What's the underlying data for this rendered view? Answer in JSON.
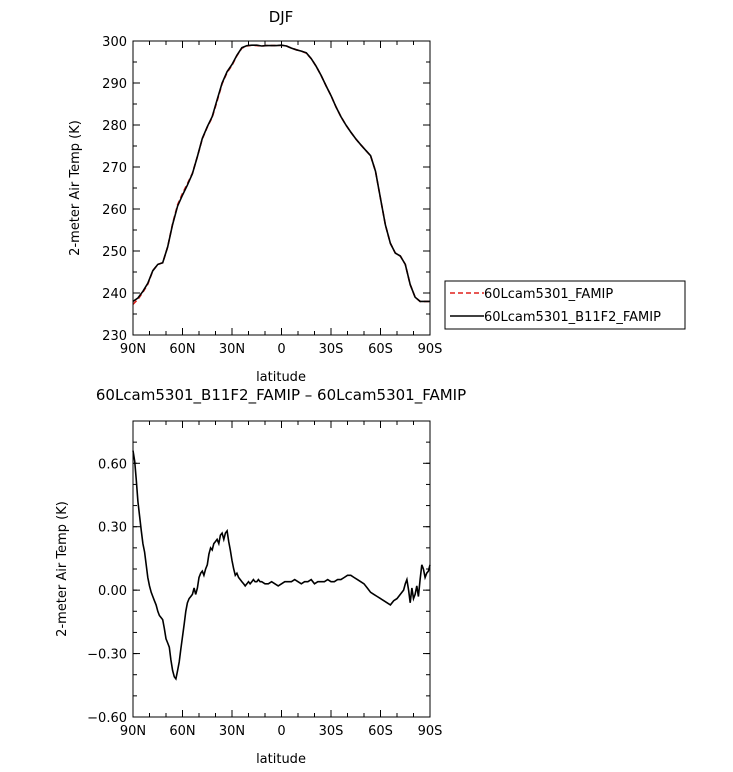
{
  "chart_data": [
    {
      "type": "line",
      "title": "DJF",
      "xlabel": "latitude",
      "ylabel": "2-meter Air Temp (K)",
      "xticks": [
        "90N",
        "60N",
        "30N",
        "0",
        "30S",
        "60S",
        "90S"
      ],
      "yticks": [
        "230",
        "240",
        "250",
        "260",
        "270",
        "280",
        "290",
        "300"
      ],
      "xlim": [
        90,
        -90
      ],
      "ylim": [
        230,
        300
      ],
      "grid": false,
      "legend_position": "right",
      "series": [
        {
          "name": "60Lcam5301_FAMIP",
          "color": "#e0201b",
          "style": "dashed",
          "x": [
            90,
            87,
            84,
            81,
            78,
            75,
            72,
            69,
            66,
            63,
            60,
            57,
            54,
            51,
            48,
            45,
            42,
            39,
            36,
            33,
            30,
            27,
            24,
            21,
            18,
            15,
            12,
            9,
            6,
            3,
            0,
            -3,
            -6,
            -9,
            -12,
            -15,
            -18,
            -21,
            -24,
            -27,
            -30,
            -33,
            -36,
            -39,
            -42,
            -45,
            -48,
            -51,
            -54,
            -57,
            -60,
            -63,
            -66,
            -69,
            -72,
            -75,
            -78,
            -81,
            -84,
            -87,
            -90
          ],
          "y": [
            237.3,
            238.5,
            240.2,
            242.1,
            245.3,
            246.8,
            247.2,
            251.0,
            256.5,
            261.0,
            263.7,
            266.0,
            268.5,
            272.5,
            276.7,
            279.5,
            281.8,
            285.7,
            289.8,
            292.5,
            294.2,
            296.5,
            298.3,
            298.8,
            299.0,
            298.9,
            298.8,
            298.9,
            298.9,
            298.9,
            299.0,
            298.8,
            298.3,
            297.9,
            297.6,
            297.1,
            295.8,
            294.0,
            291.8,
            289.3,
            287.0,
            284.3,
            282.0,
            280.0,
            278.3,
            276.7,
            275.3,
            274.0,
            272.7,
            269.0,
            262.5,
            256.2,
            251.8,
            249.5,
            248.8,
            246.8,
            242.0,
            239.0,
            238.0,
            238.0,
            238.0
          ]
        },
        {
          "name": "60Lcam5301_B11F2_FAMIP",
          "color": "#000000",
          "style": "solid",
          "x": [
            90,
            87,
            84,
            81,
            78,
            75,
            72,
            69,
            66,
            63,
            60,
            57,
            54,
            51,
            48,
            45,
            42,
            39,
            36,
            33,
            30,
            27,
            24,
            21,
            18,
            15,
            12,
            9,
            6,
            3,
            0,
            -3,
            -6,
            -9,
            -12,
            -15,
            -18,
            -21,
            -24,
            -27,
            -30,
            -33,
            -36,
            -39,
            -42,
            -45,
            -48,
            -51,
            -54,
            -57,
            -60,
            -63,
            -66,
            -69,
            -72,
            -75,
            -78,
            -81,
            -84,
            -87,
            -90
          ],
          "y": [
            238.0,
            238.8,
            240.4,
            242.3,
            245.3,
            246.8,
            247.2,
            251.0,
            256.3,
            260.7,
            263.3,
            265.7,
            268.4,
            272.5,
            276.8,
            279.6,
            282.0,
            286.0,
            290.0,
            292.7,
            294.4,
            296.6,
            298.4,
            298.9,
            299.0,
            299.0,
            298.8,
            298.9,
            298.9,
            298.9,
            299.0,
            298.8,
            298.3,
            297.9,
            297.6,
            297.2,
            295.8,
            294.0,
            291.8,
            289.3,
            287.0,
            284.3,
            282.0,
            280.0,
            278.3,
            276.7,
            275.3,
            274.0,
            272.7,
            269.0,
            262.5,
            256.2,
            251.8,
            249.5,
            248.8,
            246.8,
            242.0,
            239.0,
            238.0,
            238.0,
            238.0
          ]
        }
      ]
    },
    {
      "type": "line",
      "title": "60Lcam5301_B11F2_FAMIP – 60Lcam5301_FAMIP",
      "xlabel": "latitude",
      "ylabel": "2-meter Air Temp (K)",
      "xticks": [
        "90N",
        "60N",
        "30N",
        "0",
        "30S",
        "60S",
        "90S"
      ],
      "yticks": [
        "−0.60",
        "−0.30",
        "0.00",
        "0.30",
        "0.60"
      ],
      "xlim": [
        90,
        -90
      ],
      "ylim": [
        -0.6,
        0.8
      ],
      "grid": false,
      "series": [
        {
          "color": "#000000",
          "style": "solid",
          "x": [
            90,
            89,
            88,
            87,
            86,
            85,
            84,
            83,
            82,
            81,
            80,
            79,
            78,
            77,
            76,
            75,
            74,
            73,
            72,
            71,
            70,
            69,
            68,
            67,
            66,
            65,
            64,
            63,
            62,
            61,
            60,
            59,
            58,
            57,
            56,
            55,
            54,
            53,
            52,
            51,
            50,
            49,
            48,
            47,
            46,
            45,
            44,
            43,
            42,
            41,
            40,
            39,
            38,
            37,
            36,
            35,
            34,
            33,
            32,
            31,
            30,
            29,
            28,
            27,
            26,
            25,
            24,
            23,
            22,
            21,
            20,
            19,
            18,
            17,
            16,
            15,
            14,
            13,
            12,
            10,
            8,
            6,
            4,
            2,
            0,
            -2,
            -4,
            -6,
            -8,
            -10,
            -12,
            -14,
            -16,
            -18,
            -20,
            -22,
            -24,
            -26,
            -28,
            -30,
            -32,
            -34,
            -36,
            -38,
            -40,
            -42,
            -44,
            -46,
            -48,
            -50,
            -52,
            -54,
            -56,
            -58,
            -60,
            -62,
            -64,
            -66,
            -68,
            -70,
            -72,
            -74,
            -75,
            -76,
            -77,
            -78,
            -79,
            -80,
            -81,
            -82,
            -83,
            -84,
            -85,
            -86,
            -87,
            -88,
            -89,
            -90
          ],
          "y": [
            0.66,
            0.61,
            0.52,
            0.42,
            0.35,
            0.28,
            0.22,
            0.18,
            0.12,
            0.06,
            0.02,
            -0.01,
            -0.03,
            -0.05,
            -0.07,
            -0.1,
            -0.12,
            -0.13,
            -0.14,
            -0.18,
            -0.23,
            -0.25,
            -0.27,
            -0.33,
            -0.38,
            -0.41,
            -0.42,
            -0.38,
            -0.34,
            -0.28,
            -0.22,
            -0.16,
            -0.1,
            -0.06,
            -0.04,
            -0.03,
            -0.02,
            0.01,
            -0.02,
            0.01,
            0.06,
            0.08,
            0.09,
            0.07,
            0.1,
            0.12,
            0.17,
            0.2,
            0.19,
            0.22,
            0.23,
            0.24,
            0.22,
            0.26,
            0.27,
            0.24,
            0.27,
            0.28,
            0.23,
            0.19,
            0.14,
            0.1,
            0.07,
            0.08,
            0.06,
            0.05,
            0.04,
            0.03,
            0.02,
            0.03,
            0.04,
            0.03,
            0.04,
            0.05,
            0.04,
            0.04,
            0.05,
            0.04,
            0.04,
            0.03,
            0.03,
            0.04,
            0.03,
            0.02,
            0.03,
            0.04,
            0.04,
            0.04,
            0.05,
            0.04,
            0.03,
            0.04,
            0.04,
            0.05,
            0.03,
            0.04,
            0.04,
            0.04,
            0.05,
            0.04,
            0.04,
            0.05,
            0.05,
            0.06,
            0.07,
            0.07,
            0.06,
            0.05,
            0.04,
            0.03,
            0.01,
            -0.01,
            -0.02,
            -0.03,
            -0.04,
            -0.05,
            -0.06,
            -0.07,
            -0.05,
            -0.04,
            -0.02,
            0.0,
            0.03,
            0.05,
            0.0,
            -0.06,
            0.01,
            -0.04,
            -0.02,
            0.02,
            -0.03,
            0.05,
            0.12,
            0.1,
            0.06,
            0.08,
            0.09,
            0.12
          ]
        }
      ]
    }
  ]
}
